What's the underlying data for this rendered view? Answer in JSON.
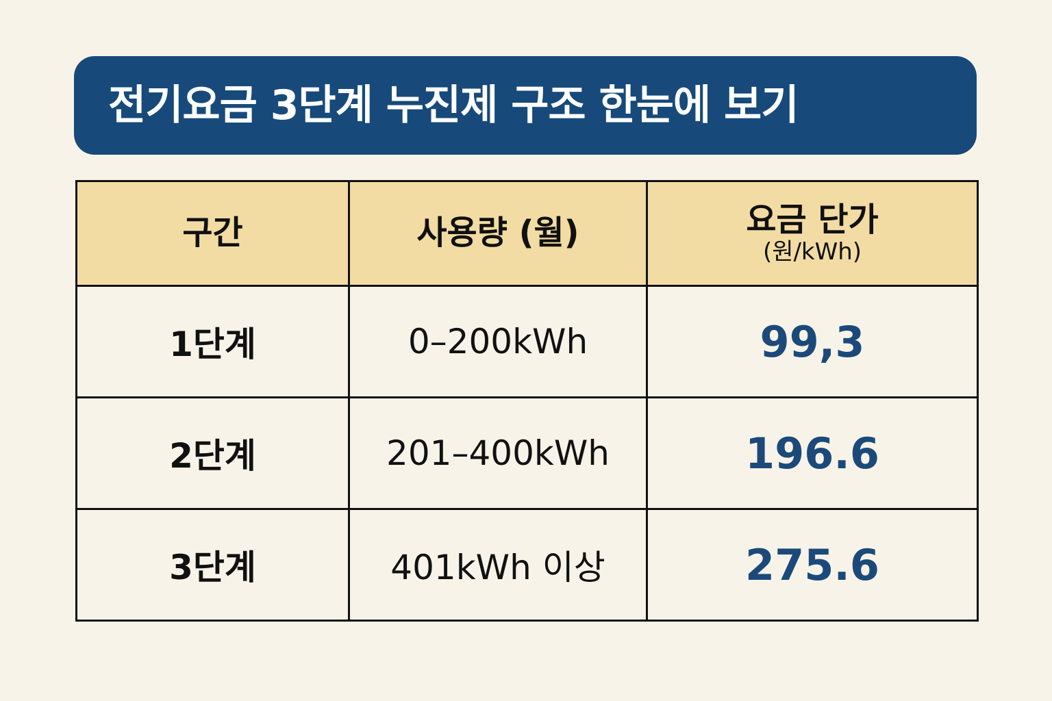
{
  "header": {
    "title": "전기요금 3단계 누진제 구조 한눈에 보기"
  },
  "table": {
    "columns": [
      [
        "구간"
      ],
      [
        "사용량 (월)"
      ],
      [
        "요금 단가",
        "(원/kWh)"
      ]
    ],
    "rows": [
      [
        "1단계",
        "0–200kWh",
        "99,3"
      ],
      [
        "2단계",
        "201–400kWh",
        "196.6"
      ],
      [
        "3단계",
        "401kWh 이상",
        "275.6"
      ]
    ]
  }
}
